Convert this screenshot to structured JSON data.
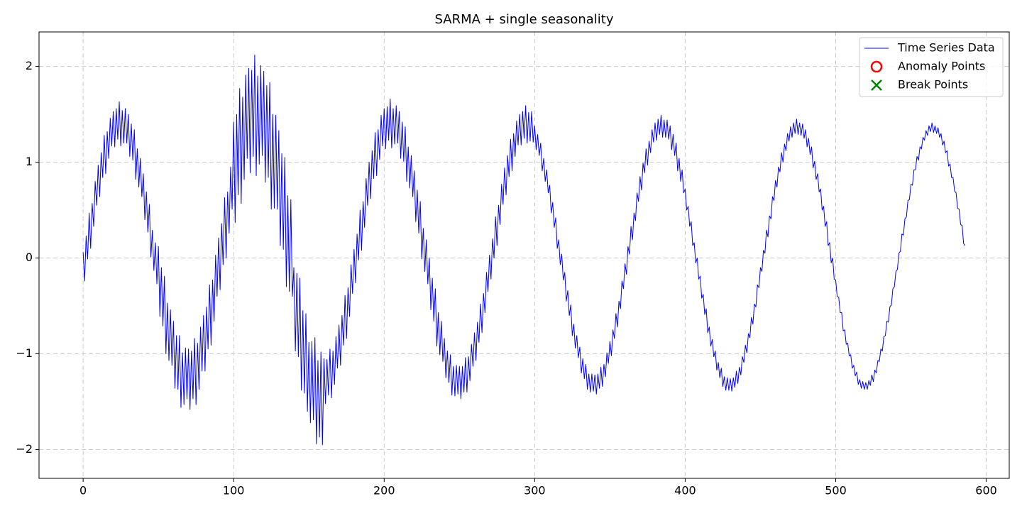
{
  "chart_data": {
    "type": "line",
    "title": "SARMA + single seasonality",
    "xlim": [
      -29.3,
      615.3
    ],
    "ylim": [
      -2.3,
      2.36
    ],
    "xticks": [
      0,
      100,
      200,
      300,
      400,
      500,
      600
    ],
    "yticks": [
      {
        "value": -2,
        "label": "−2"
      },
      {
        "value": -1,
        "label": "−1"
      },
      0,
      1,
      2
    ],
    "grid": true,
    "legend_position": "upper right",
    "x": [
      0,
      1,
      2,
      3,
      4,
      5,
      6,
      7,
      8,
      9,
      10,
      11,
      12,
      13,
      14,
      15,
      16,
      17,
      18,
      19,
      20,
      21,
      22,
      23,
      24,
      25,
      26,
      27,
      28,
      29,
      30,
      31,
      32,
      33,
      34,
      35,
      36,
      37,
      38,
      39,
      40,
      41,
      42,
      43,
      44,
      45,
      46,
      47,
      48,
      49,
      50,
      51,
      52,
      53,
      54,
      55,
      56,
      57,
      58,
      59,
      60,
      61,
      62,
      63,
      64,
      65,
      66,
      67,
      68,
      69,
      70,
      71,
      72,
      73,
      74,
      75,
      76,
      77,
      78,
      79,
      80,
      81,
      82,
      83,
      84,
      85,
      86,
      87,
      88,
      89,
      90,
      91,
      92,
      93,
      94,
      95,
      96,
      97,
      98,
      99,
      100,
      101,
      102,
      103,
      104,
      105,
      106,
      107,
      108,
      109,
      110,
      111,
      112,
      113,
      114,
      115,
      116,
      117,
      118,
      119,
      120,
      121,
      122,
      123,
      124,
      125,
      126,
      127,
      128,
      129,
      130,
      131,
      132,
      133,
      134,
      135,
      136,
      137,
      138,
      139,
      140,
      141,
      142,
      143,
      144,
      145,
      146,
      147,
      148,
      149,
      150,
      151,
      152,
      153,
      154,
      155,
      156,
      157,
      158,
      159,
      160,
      161,
      162,
      163,
      164,
      165,
      166,
      167,
      168,
      169,
      170,
      171,
      172,
      173,
      174,
      175,
      176,
      177,
      178,
      179,
      180,
      181,
      182,
      183,
      184,
      185,
      186,
      187,
      188,
      189,
      190,
      191,
      192,
      193,
      194,
      195,
      196,
      197,
      198,
      199,
      200,
      201,
      202,
      203,
      204,
      205,
      206,
      207,
      208,
      209,
      210,
      211,
      212,
      213,
      214,
      215,
      216,
      217,
      218,
      219,
      220,
      221,
      222,
      223,
      224,
      225,
      226,
      227,
      228,
      229,
      230,
      231,
      232,
      233,
      234,
      235,
      236,
      237,
      238,
      239,
      240,
      241,
      242,
      243,
      244,
      245,
      246,
      247,
      248,
      249,
      250,
      251,
      252,
      253,
      254,
      255,
      256,
      257,
      258,
      259,
      260,
      261,
      262,
      263,
      264,
      265,
      266,
      267,
      268,
      269,
      270,
      271,
      272,
      273,
      274,
      275,
      276,
      277,
      278,
      279,
      280,
      281,
      282,
      283,
      284,
      285,
      286,
      287,
      288,
      289,
      290,
      291,
      292,
      293,
      294,
      295,
      296,
      297,
      298,
      299,
      300,
      301,
      302,
      303,
      304,
      305,
      306,
      307,
      308,
      309,
      310,
      311,
      312,
      313,
      314,
      315,
      316,
      317,
      318,
      319,
      320,
      321,
      322,
      323,
      324,
      325,
      326,
      327,
      328,
      329,
      330,
      331,
      332,
      333,
      334,
      335,
      336,
      337,
      338,
      339,
      340,
      341,
      342,
      343,
      344,
      345,
      346,
      347,
      348,
      349,
      350,
      351,
      352,
      353,
      354,
      355,
      356,
      357,
      358,
      359,
      360,
      361,
      362,
      363,
      364,
      365,
      366,
      367,
      368,
      369,
      370,
      371,
      372,
      373,
      374,
      375,
      376,
      377,
      378,
      379,
      380,
      381,
      382,
      383,
      384,
      385,
      386,
      387,
      388,
      389,
      390,
      391,
      392,
      393,
      394,
      395,
      396,
      397,
      398,
      399,
      400,
      401,
      402,
      403,
      404,
      405,
      406,
      407,
      408,
      409,
      410,
      411,
      412,
      413,
      414,
      415,
      416,
      417,
      418,
      419,
      420,
      421,
      422,
      423,
      424,
      425,
      426,
      427,
      428,
      429,
      430,
      431,
      432,
      433,
      434,
      435,
      436,
      437,
      438,
      439,
      440,
      441,
      442,
      443,
      444,
      445,
      446,
      447,
      448,
      449,
      450,
      451,
      452,
      453,
      454,
      455,
      456,
      457,
      458,
      459,
      460,
      461,
      462,
      463,
      464,
      465,
      466,
      467,
      468,
      469,
      470,
      471,
      472,
      473,
      474,
      475,
      476,
      477,
      478,
      479,
      480,
      481,
      482,
      483,
      484,
      485,
      486,
      487,
      488,
      489,
      490,
      491,
      492,
      493,
      494,
      495,
      496,
      497,
      498,
      499,
      500,
      501,
      502,
      503,
      504,
      505,
      506,
      507,
      508,
      509,
      510,
      511,
      512,
      513,
      514,
      515,
      516,
      517,
      518,
      519,
      520,
      521,
      522,
      523,
      524,
      525,
      526,
      527,
      528,
      529,
      530,
      531,
      532,
      533,
      534,
      535,
      536,
      537,
      538,
      539,
      540,
      541,
      542,
      543,
      544,
      545,
      546,
      547,
      548,
      549,
      550,
      551,
      552,
      553,
      554,
      555,
      556,
      557,
      558,
      559,
      560,
      561,
      562,
      563,
      564,
      565,
      566,
      567,
      568,
      569,
      570,
      571,
      572,
      573,
      574,
      575,
      576,
      577,
      578,
      579,
      580,
      581,
      582,
      583,
      584,
      585,
      586
    ],
    "series": [
      {
        "name": "Time Series Data",
        "color": "#0000ff",
        "values": [
          0.06,
          -0.24,
          0.23,
          -0.01,
          0.47,
          0.1,
          0.57,
          0.33,
          0.8,
          0.55,
          0.97,
          0.64,
          1.1,
          0.84,
          1.28,
          0.88,
          1.32,
          1.04,
          1.46,
          1.17,
          1.53,
          1.16,
          1.56,
          1.24,
          1.63,
          1.17,
          1.54,
          1.2,
          1.56,
          1.2,
          1.5,
          1.06,
          1.4,
          1.02,
          1.34,
          0.82,
          1.14,
          0.74,
          1.04,
          0.64,
          0.88,
          0.4,
          0.69,
          0.27,
          0.56,
          0.01,
          0.29,
          -0.13,
          0.16,
          -0.27,
          0.12,
          -0.61,
          -0.1,
          -0.71,
          -0.19,
          -1.0,
          -0.47,
          -1.07,
          -0.54,
          -1.12,
          -0.66,
          -1.36,
          -0.81,
          -1.37,
          -0.81,
          -1.56,
          -0.99,
          -1.53,
          -0.94,
          -1.47,
          -0.95,
          -1.58,
          -0.97,
          -1.47,
          -0.84,
          -1.53,
          -0.89,
          -1.37,
          -0.72,
          -1.18,
          -0.6,
          -1.18,
          -0.51,
          -0.95,
          -0.28,
          -0.91,
          -0.23,
          -0.66,
          0.03,
          -0.4,
          0.21,
          -0.33,
          0.36,
          -0.07,
          0.63,
          0.0,
          0.69,
          0.26,
          0.95,
          0.51,
          1.42,
          0.37,
          1.5,
          0.66,
          1.77,
          0.57,
          1.68,
          0.82,
          1.91,
          1.04,
          1.98,
          0.89,
          1.96,
          1.06,
          2.12,
          0.86,
          1.9,
          0.98,
          2.01,
          1.07,
          1.95,
          0.79,
          1.8,
          0.84,
          1.83,
          0.51,
          1.5,
          0.52,
          1.49,
          0.51,
          1.33,
          0.13,
          1.09,
          0.09,
          1.05,
          -0.3,
          0.65,
          -0.35,
          0.61,
          -0.4,
          -0.1,
          -0.97,
          -0.16,
          -1.03,
          -0.21,
          -1.38,
          -0.55,
          -1.41,
          -0.58,
          -1.6,
          -0.88,
          -1.72,
          -0.87,
          -1.69,
          -0.83,
          -1.94,
          -1.07,
          -1.87,
          -0.98,
          -1.95,
          -1.05,
          -1.52,
          -1.06,
          -1.43,
          -0.95,
          -1.46,
          -0.97,
          -1.32,
          -0.82,
          -1.15,
          -0.7,
          -1.12,
          -0.6,
          -0.91,
          -0.39,
          -0.84,
          -0.31,
          -0.61,
          -0.07,
          -0.37,
          0.09,
          -0.26,
          0.25,
          -0.02,
          0.5,
          0.08,
          0.59,
          0.32,
          0.83,
          0.55,
          1.0,
          0.62,
          1.12,
          0.83,
          1.31,
          0.86,
          1.34,
          1.03,
          1.49,
          1.17,
          1.56,
          1.14,
          1.58,
          1.23,
          1.66,
          1.15,
          1.56,
          1.19,
          1.59,
          1.2,
          1.53,
          1.04,
          1.42,
          1.01,
          1.37,
          0.8,
          1.16,
          0.73,
          1.07,
          0.64,
          0.91,
          0.38,
          0.71,
          0.26,
          0.59,
          -0.01,
          0.31,
          -0.14,
          0.19,
          -0.27,
          0.0,
          -0.54,
          -0.21,
          -0.66,
          -0.32,
          -0.92,
          -0.57,
          -1.01,
          -0.66,
          -1.08,
          -0.84,
          -1.25,
          -0.97,
          -1.3,
          -1.01,
          -1.43,
          -1.13,
          -1.44,
          -1.12,
          -1.42,
          -1.13,
          -1.47,
          -1.13,
          -1.4,
          -1.04,
          -1.4,
          -1.03,
          -1.28,
          -0.9,
          -1.13,
          -0.78,
          -1.07,
          -0.67,
          -0.88,
          -0.48,
          -0.78,
          -0.37,
          -0.57,
          -0.15,
          -0.35,
          0.03,
          -0.22,
          0.2,
          0.0,
          0.43,
          0.13,
          0.55,
          0.35,
          0.77,
          0.56,
          0.94,
          0.66,
          1.07,
          0.85,
          1.24,
          0.91,
          1.3,
          1.06,
          1.43,
          1.18,
          1.5,
          1.18,
          1.53,
          1.25,
          1.59,
          1.2,
          1.52,
          1.22,
          1.53,
          1.21,
          1.38,
          1.13,
          1.29,
          1.07,
          1.2,
          0.91,
          1.04,
          0.8,
          0.92,
          0.68,
          0.76,
          0.47,
          0.58,
          0.32,
          0.42,
          0.1,
          0.19,
          -0.07,
          0.04,
          -0.23,
          -0.15,
          -0.45,
          -0.34,
          -0.6,
          -0.49,
          -0.81,
          -0.69,
          -0.94,
          -0.81,
          -1.04,
          -0.93,
          -1.2,
          -1.05,
          -1.26,
          -1.11,
          -1.37,
          -1.21,
          -1.4,
          -1.21,
          -1.39,
          -1.22,
          -1.42,
          -1.21,
          -1.36,
          -1.14,
          -1.34,
          -1.11,
          -1.24,
          -0.99,
          -1.1,
          -0.87,
          -1.02,
          -0.75,
          -0.84,
          -0.58,
          -0.72,
          -0.45,
          -0.53,
          -0.24,
          -0.32,
          -0.06,
          -0.17,
          0.12,
          0.04,
          0.33,
          0.19,
          0.47,
          0.39,
          0.68,
          0.59,
          0.85,
          0.71,
          0.99,
          0.89,
          1.14,
          0.97,
          1.22,
          1.1,
          1.34,
          1.21,
          1.41,
          1.23,
          1.45,
          1.29,
          1.49,
          1.26,
          1.44,
          1.26,
          1.44,
          1.24,
          1.38,
          1.13,
          1.29,
          1.07,
          1.2,
          0.91,
          1.04,
          0.8,
          0.92,
          0.68,
          0.72,
          0.5,
          0.54,
          0.33,
          0.38,
          0.13,
          0.16,
          -0.05,
          0.0,
          -0.22,
          -0.19,
          -0.42,
          -0.38,
          -0.59,
          -0.53,
          -0.78,
          -0.72,
          -0.92,
          -0.85,
          -1.03,
          -0.97,
          -1.17,
          -1.09,
          -1.25,
          -1.15,
          -1.34,
          -1.24,
          -1.38,
          -1.25,
          -1.38,
          -1.26,
          -1.39,
          -1.25,
          -1.35,
          -1.18,
          -1.31,
          -1.14,
          -1.22,
          -1.03,
          -1.09,
          -0.91,
          -0.99,
          -0.79,
          -0.83,
          -0.62,
          -0.69,
          -0.48,
          -0.51,
          -0.28,
          -0.31,
          -0.1,
          -0.14,
          0.08,
          0.05,
          0.29,
          0.22,
          0.44,
          0.41,
          0.64,
          0.6,
          0.81,
          0.74,
          0.95,
          0.9,
          1.1,
          1.0,
          1.19,
          1.12,
          1.3,
          1.22,
          1.37,
          1.26,
          1.41,
          1.3,
          1.45,
          1.29,
          1.41,
          1.28,
          1.4,
          1.25,
          1.34,
          1.16,
          1.25,
          1.08,
          1.16,
          0.94,
          1.01,
          0.82,
          0.88,
          0.69,
          0.72,
          0.5,
          0.54,
          0.33,
          0.38,
          0.13,
          0.16,
          -0.05,
          0.0,
          -0.22,
          -0.23,
          -0.4,
          -0.41,
          -0.57,
          -0.57,
          -0.76,
          -0.75,
          -0.9,
          -0.89,
          -1.02,
          -1.01,
          -1.15,
          -1.12,
          -1.23,
          -1.19,
          -1.32,
          -1.27,
          -1.36,
          -1.29,
          -1.37,
          -1.3,
          -1.37,
          -1.28,
          -1.33,
          -1.22,
          -1.29,
          -1.17,
          -1.2,
          -1.07,
          -1.08,
          -0.95,
          -0.97,
          -0.82,
          -0.81,
          -0.66,
          -0.67,
          -0.51,
          -0.49,
          -0.32,
          -0.3,
          -0.14,
          -0.12,
          0.05,
          0.07,
          0.25,
          0.24,
          0.41,
          0.43,
          0.6,
          0.61,
          0.77,
          0.76,
          0.92,
          0.92,
          1.06,
          1.02,
          1.16,
          1.14,
          1.26,
          1.23,
          1.33,
          1.28,
          1.38,
          1.32,
          1.41,
          1.31,
          1.38,
          1.3,
          1.36,
          1.26,
          1.3,
          1.18,
          1.22,
          1.1,
          1.12,
          0.96,
          0.98,
          0.84,
          0.84,
          0.7,
          0.68,
          0.52,
          0.51,
          0.35,
          0.34,
          0.15,
          0.13
        ]
      }
    ],
    "legend": [
      {
        "name": "Time Series Data",
        "marker": "line",
        "color": "#0000ff"
      },
      {
        "name": "Anomaly Points",
        "marker": "circle",
        "color": "#ff0000"
      },
      {
        "name": "Break Points",
        "marker": "x",
        "color": "#008000"
      }
    ]
  }
}
